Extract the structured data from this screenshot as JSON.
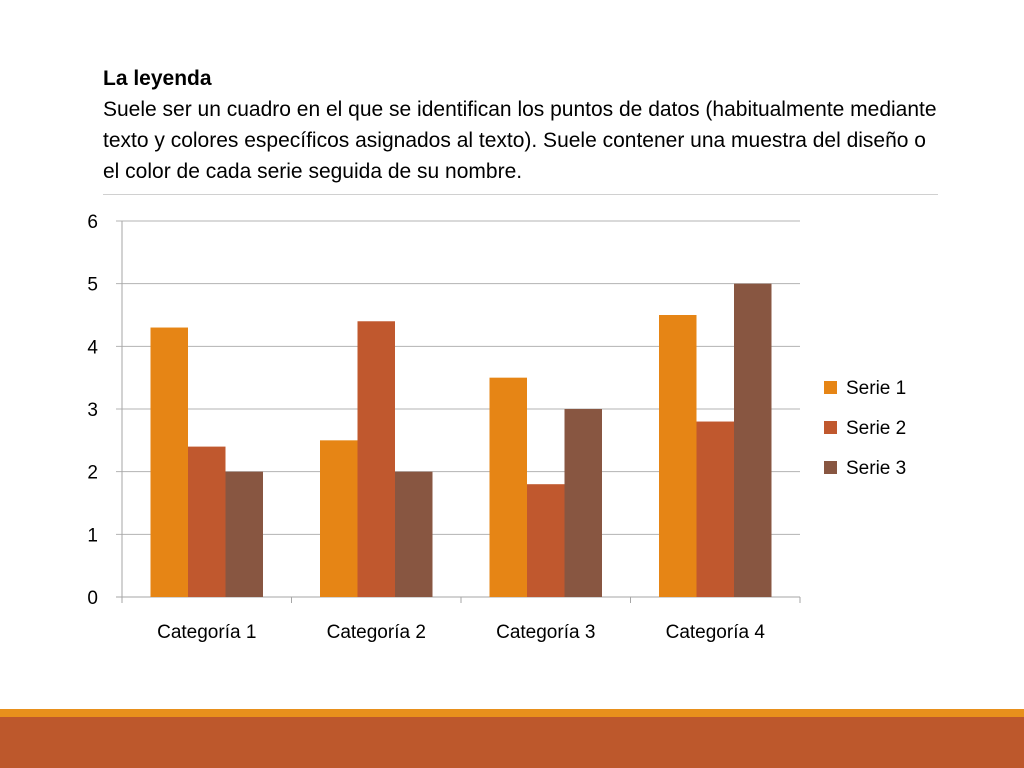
{
  "slide": {
    "heading": "La leyenda",
    "body": "Suele ser un cuadro en el que se identifican los puntos de datos (habitualmente mediante texto y colores específicos asignados al texto). Suele contener una muestra del diseño o el color de cada serie seguida de su nombre.",
    "band_colors": {
      "thin": "#E8901C",
      "thick": "#BD582C"
    }
  },
  "chart_data": {
    "type": "bar",
    "categories": [
      "Categoría 1",
      "Categoría 2",
      "Categoría 3",
      "Categoría 4"
    ],
    "series": [
      {
        "name": "Serie 1",
        "values": [
          4.3,
          2.5,
          3.5,
          4.5
        ],
        "color": "#E68515"
      },
      {
        "name": "Serie 2",
        "values": [
          2.4,
          4.4,
          1.8,
          2.8
        ],
        "color": "#C0582E"
      },
      {
        "name": "Serie 3",
        "values": [
          2,
          2,
          3,
          5
        ],
        "color": "#885641"
      }
    ],
    "yticks": [
      "0",
      "1",
      "2",
      "3",
      "4",
      "5",
      "6"
    ],
    "ylim": [
      0,
      6
    ],
    "grid": true,
    "legend_position": "right"
  }
}
